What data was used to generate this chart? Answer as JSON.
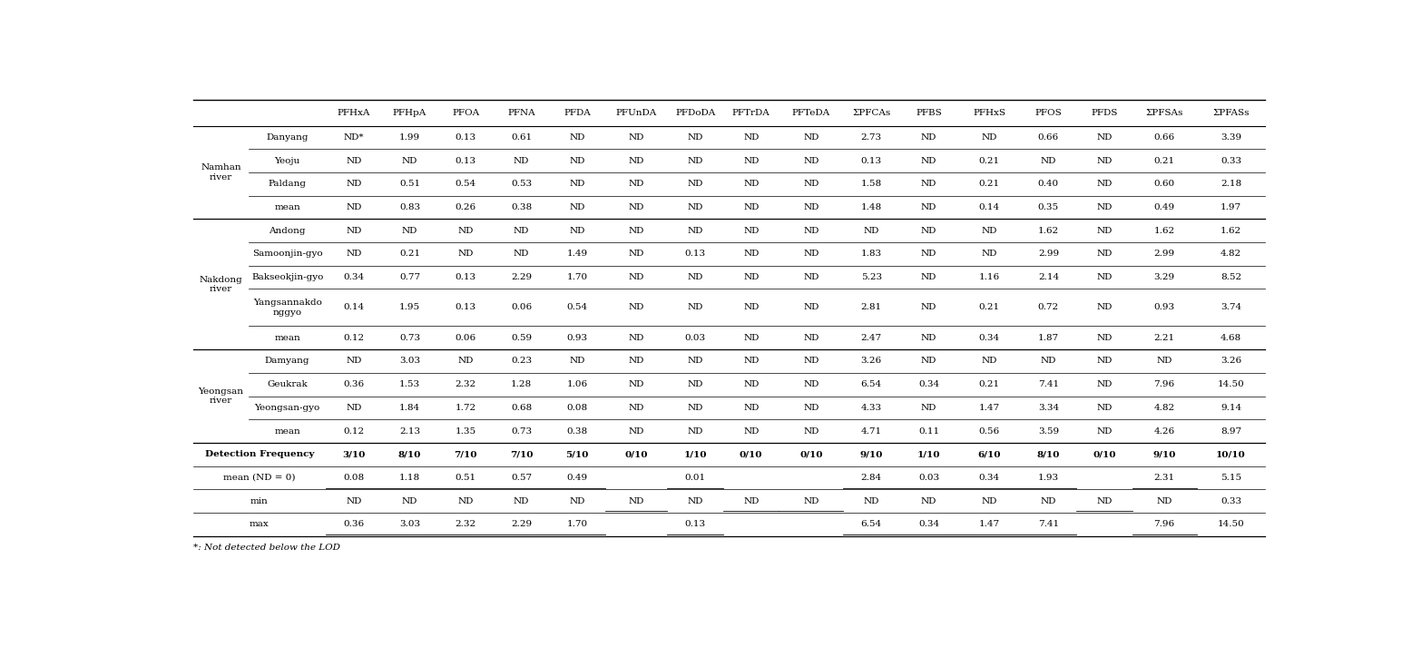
{
  "columns": [
    "PFHxA",
    "PFHpA",
    "PFOA",
    "PFNA",
    "PFDA",
    "PFUnDA",
    "PFDoDA",
    "PFTrDA",
    "PFTeDA",
    "ΣPFCAs",
    "PFBS",
    "PFHxS",
    "PFOS",
    "PFDS",
    "ΣPFSAs",
    "ΣPFASs"
  ],
  "river_groups": [
    {
      "name": "Namhan\nriver",
      "rows": [
        {
          "label": "Danyang",
          "values": [
            "ND*",
            "1.99",
            "0.13",
            "0.61",
            "ND",
            "ND",
            "ND",
            "ND",
            "ND",
            "2.73",
            "ND",
            "ND",
            "0.66",
            "ND",
            "0.66",
            "3.39"
          ]
        },
        {
          "label": "Yeoju",
          "values": [
            "ND",
            "ND",
            "0.13",
            "ND",
            "ND",
            "ND",
            "ND",
            "ND",
            "ND",
            "0.13",
            "ND",
            "0.21",
            "ND",
            "ND",
            "0.21",
            "0.33"
          ]
        },
        {
          "label": "Paldang",
          "values": [
            "ND",
            "0.51",
            "0.54",
            "0.53",
            "ND",
            "ND",
            "ND",
            "ND",
            "ND",
            "1.58",
            "ND",
            "0.21",
            "0.40",
            "ND",
            "0.60",
            "2.18"
          ]
        },
        {
          "label": "mean",
          "values": [
            "ND",
            "0.83",
            "0.26",
            "0.38",
            "ND",
            "ND",
            "ND",
            "ND",
            "ND",
            "1.48",
            "ND",
            "0.14",
            "0.35",
            "ND",
            "0.49",
            "1.97"
          ]
        }
      ]
    },
    {
      "name": "Nakdong\nriver",
      "rows": [
        {
          "label": "Andong",
          "values": [
            "ND",
            "ND",
            "ND",
            "ND",
            "ND",
            "ND",
            "ND",
            "ND",
            "ND",
            "ND",
            "ND",
            "ND",
            "1.62",
            "ND",
            "1.62",
            "1.62"
          ],
          "tall": false
        },
        {
          "label": "Samoonjin-gyo",
          "values": [
            "ND",
            "0.21",
            "ND",
            "ND",
            "1.49",
            "ND",
            "0.13",
            "ND",
            "ND",
            "1.83",
            "ND",
            "ND",
            "2.99",
            "ND",
            "2.99",
            "4.82"
          ],
          "tall": false
        },
        {
          "label": "Bakseokjin-gyo",
          "values": [
            "0.34",
            "0.77",
            "0.13",
            "2.29",
            "1.70",
            "ND",
            "ND",
            "ND",
            "ND",
            "5.23",
            "ND",
            "1.16",
            "2.14",
            "ND",
            "3.29",
            "8.52"
          ],
          "tall": false
        },
        {
          "label": "Yangsannakdo\nnggyo",
          "values": [
            "0.14",
            "1.95",
            "0.13",
            "0.06",
            "0.54",
            "ND",
            "ND",
            "ND",
            "ND",
            "2.81",
            "ND",
            "0.21",
            "0.72",
            "ND",
            "0.93",
            "3.74"
          ],
          "tall": true
        },
        {
          "label": "mean",
          "values": [
            "0.12",
            "0.73",
            "0.06",
            "0.59",
            "0.93",
            "ND",
            "0.03",
            "ND",
            "ND",
            "2.47",
            "ND",
            "0.34",
            "1.87",
            "ND",
            "2.21",
            "4.68"
          ],
          "tall": false
        }
      ]
    },
    {
      "name": "Yeongsan\nriver",
      "rows": [
        {
          "label": "Damyang",
          "values": [
            "ND",
            "3.03",
            "ND",
            "0.23",
            "ND",
            "ND",
            "ND",
            "ND",
            "ND",
            "3.26",
            "ND",
            "ND",
            "ND",
            "ND",
            "ND",
            "3.26"
          ],
          "tall": false
        },
        {
          "label": "Geukrak",
          "values": [
            "0.36",
            "1.53",
            "2.32",
            "1.28",
            "1.06",
            "ND",
            "ND",
            "ND",
            "ND",
            "6.54",
            "0.34",
            "0.21",
            "7.41",
            "ND",
            "7.96",
            "14.50"
          ],
          "tall": false
        },
        {
          "label": "Yeongsan-gyo",
          "values": [
            "ND",
            "1.84",
            "1.72",
            "0.68",
            "0.08",
            "ND",
            "ND",
            "ND",
            "ND",
            "4.33",
            "ND",
            "1.47",
            "3.34",
            "ND",
            "4.82",
            "9.14"
          ],
          "tall": false
        },
        {
          "label": "mean",
          "values": [
            "0.12",
            "2.13",
            "1.35",
            "0.73",
            "0.38",
            "ND",
            "ND",
            "ND",
            "ND",
            "4.71",
            "0.11",
            "0.56",
            "3.59",
            "ND",
            "4.26",
            "8.97"
          ],
          "tall": false
        }
      ]
    }
  ],
  "summary_rows": [
    {
      "label": "Detection Frequency",
      "values": [
        "3/10",
        "8/10",
        "7/10",
        "7/10",
        "5/10",
        "0/10",
        "1/10",
        "0/10",
        "0/10",
        "9/10",
        "1/10",
        "6/10",
        "8/10",
        "0/10",
        "9/10",
        "10/10"
      ],
      "bold": true
    },
    {
      "label": "mean (ND = 0)",
      "values": [
        "0.08",
        "1.18",
        "0.51",
        "0.57",
        "0.49",
        "",
        "0.01",
        "",
        "",
        "2.84",
        "0.03",
        "0.34",
        "1.93",
        "",
        "2.31",
        "5.15"
      ],
      "bold": false
    },
    {
      "label": "min",
      "values": [
        "ND",
        "ND",
        "ND",
        "ND",
        "ND",
        "ND",
        "ND",
        "ND",
        "ND",
        "ND",
        "ND",
        "ND",
        "ND",
        "ND",
        "ND",
        "0.33"
      ],
      "bold": false
    },
    {
      "label": "max",
      "values": [
        "0.36",
        "3.03",
        "2.32",
        "2.29",
        "1.70",
        "",
        "0.13",
        "",
        "",
        "6.54",
        "0.34",
        "1.47",
        "7.41",
        "",
        "7.96",
        "14.50"
      ],
      "bold": false
    }
  ],
  "footnote": "*: Not detected below the LOD",
  "background_color": "#ffffff"
}
